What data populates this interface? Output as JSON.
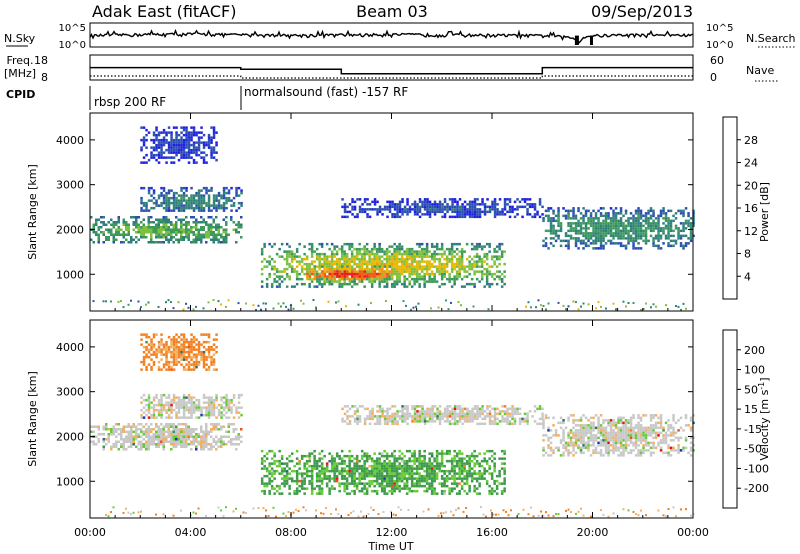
{
  "header": {
    "station": "Adak East (fitACF)",
    "beam": "Beam 03",
    "date": "09/Sep/2013"
  },
  "noise_panel": {
    "left_label": "N.Sky",
    "right_label": "N.Search",
    "left_ticks": [
      "10^5",
      "10^0"
    ],
    "right_ticks": [
      "10^5",
      "10^0"
    ]
  },
  "freq_panel": {
    "left_label_line1": "Freq.",
    "left_label_line2": "[MHz]",
    "right_label": "Nave",
    "left_ticks": [
      "18",
      "8"
    ],
    "right_ticks": [
      "60",
      "0"
    ]
  },
  "cpid": {
    "label": "CPID",
    "segments": [
      {
        "name": "rbsp 200 RF",
        "start_hour": 0
      },
      {
        "name": "normalsound (fast) -157 RF",
        "start_hour": 6
      }
    ]
  },
  "x_axis": {
    "label": "Time UT",
    "ticks": [
      "00:00",
      "04:00",
      "08:00",
      "12:00",
      "16:00",
      "20:00",
      "00:00"
    ],
    "range_hours": [
      0,
      24
    ]
  },
  "chart_data": [
    {
      "type": "line",
      "panel": "noise",
      "y_scale": "log",
      "ylim": [
        1,
        100000
      ],
      "series": [
        {
          "x": [
            0,
            2,
            4,
            6,
            8,
            10,
            12,
            14,
            16,
            18,
            19.5,
            20,
            22,
            24
          ],
          "y": [
            300,
            600,
            800,
            500,
            350,
            450,
            600,
            500,
            400,
            300,
            5,
            300,
            500,
            400
          ]
        }
      ]
    },
    {
      "type": "line",
      "panel": "frequency",
      "ylim": [
        8,
        18
      ],
      "y2lim": [
        0,
        60
      ],
      "series": [
        {
          "x": [
            0,
            6,
            6,
            10,
            10,
            18,
            18,
            24
          ],
          "y": [
            13.2,
            13.2,
            12.4,
            12.4,
            10.1,
            10.1,
            13.2,
            13.2
          ]
        },
        {
          "x": [
            0,
            6,
            6,
            18,
            18,
            24
          ],
          "y": [
            6,
            6,
            0,
            0,
            6,
            6
          ]
        }
      ]
    },
    {
      "type": "heatmap",
      "panel": "power",
      "ylabel": "Slant Range [km]",
      "xlim": [
        0,
        24
      ],
      "ylim": [
        180,
        4600
      ],
      "yticks": [
        1000,
        2000,
        3000,
        4000
      ],
      "colorbar": {
        "label": "Power [dB]",
        "ticks": [
          "4",
          "8",
          "12",
          "16",
          "20",
          "24",
          "28"
        ],
        "range": [
          0,
          30
        ]
      },
      "echo_regions": [
        {
          "x": [
            0,
            6
          ],
          "y": [
            1700,
            2300
          ],
          "value": 14
        },
        {
          "x": [
            2,
            6
          ],
          "y": [
            2400,
            2950
          ],
          "value": 9
        },
        {
          "x": [
            2,
            5
          ],
          "y": [
            3500,
            4300
          ],
          "value": 4
        },
        {
          "x": [
            6.8,
            16.5
          ],
          "y": [
            750,
            1700
          ],
          "value": 18
        },
        {
          "x": [
            8.5,
            12
          ],
          "y": [
            850,
            1200
          ],
          "value": 28
        },
        {
          "x": [
            10,
            18
          ],
          "y": [
            2300,
            2700
          ],
          "value": 5
        },
        {
          "x": [
            18,
            24
          ],
          "y": [
            1600,
            2500
          ],
          "value": 11
        }
      ]
    },
    {
      "type": "heatmap",
      "panel": "velocity",
      "ylabel": "Slant Range [km]",
      "xlim": [
        0,
        24
      ],
      "ylim": [
        180,
        4600
      ],
      "yticks": [
        1000,
        2000,
        3000,
        4000
      ],
      "colorbar": {
        "label": "Velocity [m s^-1]",
        "ticks": [
          "200",
          "100",
          "50",
          "15",
          "-15",
          "-50",
          "-100",
          "-200"
        ],
        "range": [
          -250,
          250
        ]
      },
      "echo_regions": [
        {
          "x": [
            0,
            6
          ],
          "y": [
            1700,
            2300
          ],
          "value": 0
        },
        {
          "x": [
            2,
            6
          ],
          "y": [
            2400,
            2950
          ],
          "value": 0
        },
        {
          "x": [
            2,
            5
          ],
          "y": [
            3500,
            4300
          ],
          "value": -60
        },
        {
          "x": [
            6.8,
            16.5
          ],
          "y": [
            750,
            1700
          ],
          "value": 40
        },
        {
          "x": [
            10,
            18
          ],
          "y": [
            2300,
            2700
          ],
          "value": 0
        },
        {
          "x": [
            18,
            24
          ],
          "y": [
            1600,
            2500
          ],
          "value": 0
        }
      ]
    }
  ]
}
